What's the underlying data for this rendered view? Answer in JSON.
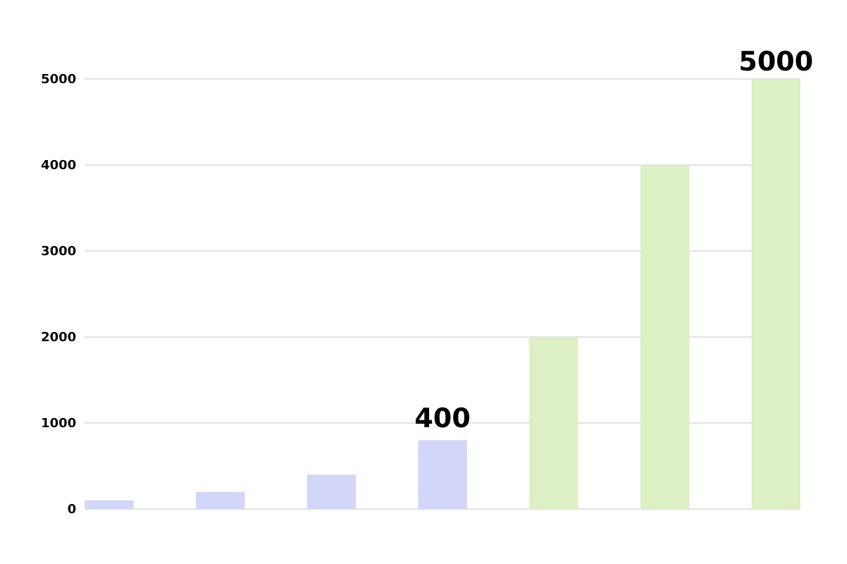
{
  "chart_data": {
    "type": "bar",
    "categories": [
      null,
      null,
      null,
      null,
      null,
      null,
      null
    ],
    "values": [
      100,
      200,
      400,
      800,
      2000,
      4000,
      5000
    ],
    "colors": [
      "#d2d6f8",
      "#d2d6f8",
      "#d2d6f8",
      "#d2d6f8",
      "#dcf0c3",
      "#dcf0c3",
      "#dcf0c3"
    ],
    "value_labels": [
      null,
      null,
      null,
      null,
      null,
      null,
      "5000"
    ],
    "annotations": [
      {
        "text": "400",
        "y": 800
      }
    ],
    "ylim": [
      0,
      5000
    ],
    "yticks": [
      0,
      1000,
      2000,
      3000,
      4000,
      5000
    ],
    "grid": "y"
  }
}
